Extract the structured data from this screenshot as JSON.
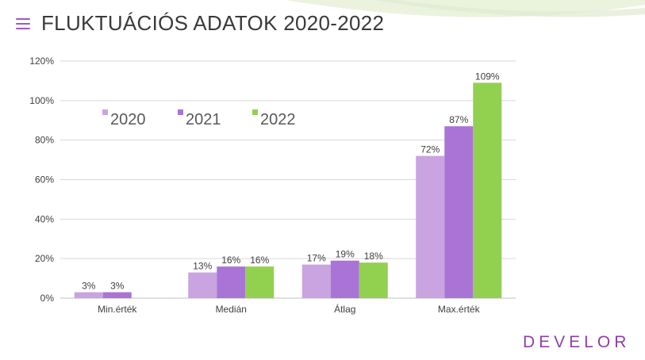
{
  "header": {
    "title": "FLUKTUÁCIÓS ADATOK 2020-2022",
    "icon": "menu-lines-icon"
  },
  "brand": {
    "text": "DEVELOR",
    "color": "#8e3fa8"
  },
  "colors": {
    "series": [
      "#c9a4e0",
      "#a974d6",
      "#92d050"
    ],
    "grid": "#d9d9d9",
    "axis": "#bfbfbf",
    "text": "#404040"
  },
  "chart_data": {
    "type": "bar",
    "categories": [
      "Min.érték",
      "Medián",
      "Átlag",
      "Max.érték"
    ],
    "series": [
      {
        "name": "2020",
        "values": [
          3,
          13,
          17,
          72
        ]
      },
      {
        "name": "2021",
        "values": [
          3,
          16,
          19,
          87
        ]
      },
      {
        "name": "2022",
        "values": [
          null,
          16,
          18,
          109
        ]
      }
    ],
    "data_labels": [
      [
        "3%",
        "13%",
        "17%",
        "72%"
      ],
      [
        "3%",
        "16%",
        "19%",
        "87%"
      ],
      [
        null,
        "16%",
        "18%",
        "109%"
      ]
    ],
    "ylim": [
      0,
      120
    ],
    "yticks": [
      0,
      20,
      40,
      60,
      80,
      100,
      120
    ],
    "ytick_labels": [
      "0%",
      "20%",
      "40%",
      "60%",
      "80%",
      "100%",
      "120%"
    ],
    "grid": true,
    "legend_position": "top-left"
  }
}
